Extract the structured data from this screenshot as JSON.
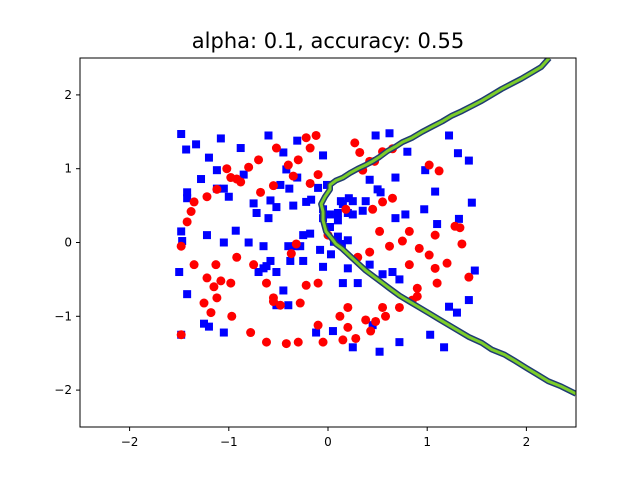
{
  "chart_data": {
    "type": "scatter",
    "title": "alpha: 0.1, accuracy: 0.55",
    "xlabel": "",
    "ylabel": "",
    "xlim": [
      -2.5,
      2.5
    ],
    "ylim": [
      -2.5,
      2.5
    ],
    "xticks": [
      -2,
      -1,
      0,
      1,
      2
    ],
    "yticks": [
      -2,
      -1,
      0,
      1,
      2
    ],
    "xtick_labels": [
      "−2",
      "−1",
      "0",
      "1",
      "2"
    ],
    "ytick_labels": [
      "−2",
      "−1",
      "0",
      "1",
      "2"
    ],
    "grid": false,
    "colors": {
      "class_a": "#0000ff",
      "class_b": "#ff0000",
      "boundary_outer": "#1f3b73",
      "boundary_inner": "#7ccd2a"
    },
    "series": [
      {
        "marker": "square",
        "color": "#0000ff",
        "points": [
          [
            -1.48,
            1.47
          ],
          [
            -1.43,
            1.26
          ],
          [
            -1.33,
            1.33
          ],
          [
            -1.2,
            1.15
          ],
          [
            -1.12,
            0.98
          ],
          [
            -1.08,
            1.41
          ],
          [
            -0.88,
            1.28
          ],
          [
            -0.6,
            1.45
          ],
          [
            -0.45,
            1.22
          ],
          [
            -0.31,
            1.38
          ],
          [
            -0.05,
            1.18
          ],
          [
            -0.42,
            0.99
          ],
          [
            -0.48,
            0.78
          ],
          [
            -0.39,
            0.73
          ],
          [
            -0.31,
            0.88
          ],
          [
            -0.58,
            0.57
          ],
          [
            -0.72,
            0.4
          ],
          [
            -0.6,
            0.33
          ],
          [
            -0.75,
            0.53
          ],
          [
            -0.85,
            0.92
          ],
          [
            -1.05,
            0.73
          ],
          [
            -1.28,
            0.86
          ],
          [
            -1.42,
            0.68
          ],
          [
            -1.42,
            0.6
          ],
          [
            -1.12,
            0.73
          ],
          [
            -1.0,
            0.62
          ],
          [
            -0.52,
            0.48
          ],
          [
            -0.35,
            0.5
          ],
          [
            -0.22,
            0.55
          ],
          [
            -0.17,
            0.58
          ],
          [
            -0.1,
            0.74
          ],
          [
            -0.01,
            0.78
          ],
          [
            0.15,
            0.52
          ],
          [
            0.13,
            0.56
          ],
          [
            0.21,
            0.6
          ],
          [
            0.35,
            0.43
          ],
          [
            0.38,
            0.56
          ],
          [
            0.25,
            0.38
          ],
          [
            0.42,
            0.85
          ],
          [
            0.5,
            0.72
          ],
          [
            0.1,
            0.4
          ],
          [
            -0.05,
            0.33
          ],
          [
            0.02,
            0.21
          ],
          [
            0.02,
            0.38
          ],
          [
            0.1,
            0.3
          ],
          [
            0.2,
            0.4
          ],
          [
            0.25,
            0.56
          ],
          [
            -0.05,
            0.45
          ],
          [
            -0.25,
            0.1
          ],
          [
            -0.28,
            -0.05
          ],
          [
            -0.18,
            0.12
          ],
          [
            -0.08,
            -0.1
          ],
          [
            0.1,
            0.08
          ],
          [
            0.06,
            0.01
          ],
          [
            0.14,
            -0.02
          ],
          [
            0.2,
            0.03
          ],
          [
            0.03,
            -0.16
          ],
          [
            -0.4,
            -0.05
          ],
          [
            -0.65,
            -0.05
          ],
          [
            -0.8,
            0.0
          ],
          [
            -0.93,
            0.16
          ],
          [
            -1.05,
            0.0
          ],
          [
            -1.22,
            0.1
          ],
          [
            -1.48,
            0.15
          ],
          [
            -1.47,
            0.02
          ],
          [
            -1.5,
            -0.4
          ],
          [
            -1.42,
            -0.7
          ],
          [
            -1.25,
            -1.1
          ],
          [
            -1.2,
            -1.14
          ],
          [
            -1.05,
            -1.22
          ],
          [
            -1.48,
            -1.25
          ],
          [
            -0.7,
            -0.4
          ],
          [
            -0.65,
            -0.35
          ],
          [
            -0.58,
            -0.25
          ],
          [
            -0.52,
            -0.4
          ],
          [
            -0.25,
            -0.25
          ],
          [
            -0.33,
            -0.05
          ],
          [
            -0.05,
            -0.33
          ],
          [
            0.3,
            -0.55
          ],
          [
            0.2,
            -0.35
          ],
          [
            0.15,
            -0.55
          ],
          [
            0.42,
            -0.3
          ],
          [
            0.55,
            -0.43
          ],
          [
            0.65,
            -0.4
          ],
          [
            0.72,
            -0.5
          ],
          [
            0.53,
            0.68
          ],
          [
            0.62,
            1.48
          ],
          [
            0.48,
            1.45
          ],
          [
            0.8,
            1.23
          ],
          [
            0.68,
            0.88
          ],
          [
            0.98,
            0.98
          ],
          [
            1.08,
            0.69
          ],
          [
            1.22,
            1.45
          ],
          [
            1.31,
            1.21
          ],
          [
            1.42,
            1.11
          ],
          [
            1.45,
            0.54
          ],
          [
            1.32,
            0.32
          ],
          [
            0.97,
            0.45
          ],
          [
            1.1,
            0.25
          ],
          [
            0.78,
            0.38
          ],
          [
            0.68,
            0.33
          ],
          [
            1.48,
            -0.38
          ],
          [
            1.42,
            -0.78
          ],
          [
            1.3,
            -0.95
          ],
          [
            1.22,
            -0.87
          ],
          [
            1.03,
            -1.25
          ],
          [
            1.17,
            -1.42
          ],
          [
            0.72,
            -1.35
          ],
          [
            0.25,
            -1.42
          ],
          [
            0.05,
            -1.2
          ],
          [
            -0.12,
            -1.22
          ],
          [
            0.52,
            -1.48
          ],
          [
            0.45,
            -1.12
          ],
          [
            -0.52,
            -0.85
          ],
          [
            -0.4,
            -0.85
          ],
          [
            -0.45,
            -0.65
          ],
          [
            -0.38,
            -0.25
          ],
          [
            -0.62,
            -0.32
          ]
        ]
      },
      {
        "marker": "circle",
        "color": "#ff0000",
        "points": [
          [
            -1.02,
            1.0
          ],
          [
            -0.98,
            0.88
          ],
          [
            -0.88,
            0.82
          ],
          [
            -0.8,
            1.02
          ],
          [
            -0.7,
            1.12
          ],
          [
            -0.52,
            1.28
          ],
          [
            -0.4,
            1.05
          ],
          [
            -0.3,
            1.12
          ],
          [
            -0.18,
            1.28
          ],
          [
            -0.12,
            1.45
          ],
          [
            -0.22,
            1.42
          ],
          [
            -0.1,
            0.92
          ],
          [
            -0.18,
            0.8
          ],
          [
            -0.35,
            0.9
          ],
          [
            -0.55,
            0.77
          ],
          [
            -0.68,
            0.68
          ],
          [
            -0.92,
            0.86
          ],
          [
            -1.12,
            0.72
          ],
          [
            -1.22,
            0.62
          ],
          [
            -1.38,
            0.42
          ],
          [
            -1.42,
            0.28
          ],
          [
            -1.48,
            -0.05
          ],
          [
            -1.35,
            -0.3
          ],
          [
            -1.22,
            -0.48
          ],
          [
            -1.13,
            -0.3
          ],
          [
            -1.08,
            -0.52
          ],
          [
            -1.15,
            -0.6
          ],
          [
            -1.12,
            -0.75
          ],
          [
            -1.25,
            -0.82
          ],
          [
            -1.18,
            -0.95
          ],
          [
            -0.97,
            -1.0
          ],
          [
            -0.98,
            -0.55
          ],
          [
            -0.92,
            -0.2
          ],
          [
            -0.75,
            -0.3
          ],
          [
            -0.62,
            -0.55
          ],
          [
            -0.55,
            -0.75
          ],
          [
            -0.48,
            -0.85
          ],
          [
            -0.28,
            -0.82
          ],
          [
            -0.22,
            -0.58
          ],
          [
            -0.1,
            -0.55
          ],
          [
            -0.3,
            -1.35
          ],
          [
            -0.42,
            -1.37
          ],
          [
            -0.62,
            -1.35
          ],
          [
            -0.78,
            -1.22
          ],
          [
            -0.1,
            -1.12
          ],
          [
            -0.05,
            -1.35
          ],
          [
            0.12,
            -1.0
          ],
          [
            0.2,
            -0.88
          ],
          [
            0.2,
            -1.15
          ],
          [
            0.28,
            -1.3
          ],
          [
            0.15,
            -1.32
          ],
          [
            0.38,
            -1.05
          ],
          [
            0.43,
            -1.2
          ],
          [
            0.48,
            -1.07
          ],
          [
            0.58,
            -1.0
          ],
          [
            0.55,
            -0.88
          ],
          [
            0.72,
            -0.88
          ],
          [
            0.85,
            -0.78
          ],
          [
            0.9,
            -0.73
          ],
          [
            0.9,
            -0.62
          ],
          [
            1.1,
            -0.55
          ],
          [
            1.08,
            -0.35
          ],
          [
            1.02,
            -0.17
          ],
          [
            0.92,
            -0.08
          ],
          [
            0.82,
            0.15
          ],
          [
            0.75,
            0.02
          ],
          [
            1.2,
            -0.28
          ],
          [
            1.28,
            0.22
          ],
          [
            1.33,
            0.2
          ],
          [
            1.35,
            -0.02
          ],
          [
            1.42,
            -0.47
          ],
          [
            1.08,
            0.1
          ],
          [
            0.82,
            -0.3
          ],
          [
            0.62,
            -0.05
          ],
          [
            0.42,
            -0.13
          ],
          [
            0.3,
            -0.2
          ],
          [
            0.52,
            0.15
          ],
          [
            0.45,
            0.45
          ],
          [
            0.18,
            0.45
          ],
          [
            0.55,
            0.55
          ],
          [
            0.65,
            0.6
          ],
          [
            1.12,
            0.97
          ],
          [
            1.02,
            1.05
          ],
          [
            0.65,
            1.27
          ],
          [
            0.55,
            1.23
          ],
          [
            0.47,
            1.1
          ],
          [
            0.42,
            1.1
          ],
          [
            0.32,
            1.22
          ],
          [
            0.27,
            1.35
          ],
          [
            0.35,
            0.98
          ],
          [
            -1.35,
            0.55
          ],
          [
            -1.48,
            -1.25
          ],
          [
            -0.32,
            -0.02
          ],
          [
            -0.37,
            -0.15
          ],
          [
            -0.55,
            -0.8
          ],
          [
            0.0,
            0.1
          ]
        ]
      }
    ],
    "decision_boundary": [
      [
        -0.05,
        0.42
      ],
      [
        -0.07,
        0.52
      ],
      [
        -0.03,
        0.62
      ],
      [
        0.02,
        0.72
      ],
      [
        0.02,
        0.78
      ],
      [
        0.08,
        0.84
      ],
      [
        0.15,
        0.88
      ],
      [
        0.22,
        0.94
      ],
      [
        0.3,
        1.0
      ],
      [
        0.38,
        1.05
      ],
      [
        0.45,
        1.1
      ],
      [
        0.52,
        1.16
      ],
      [
        0.6,
        1.24
      ],
      [
        0.68,
        1.3
      ],
      [
        0.75,
        1.36
      ],
      [
        0.85,
        1.42
      ],
      [
        0.95,
        1.5
      ],
      [
        1.05,
        1.57
      ],
      [
        1.15,
        1.64
      ],
      [
        1.25,
        1.72
      ],
      [
        1.35,
        1.78
      ],
      [
        1.45,
        1.85
      ],
      [
        1.55,
        1.92
      ],
      [
        1.65,
        2.0
      ],
      [
        1.75,
        2.08
      ],
      [
        1.85,
        2.15
      ],
      [
        1.95,
        2.22
      ],
      [
        2.05,
        2.3
      ],
      [
        2.15,
        2.38
      ],
      [
        2.23,
        2.5
      ]
    ],
    "decision_boundary_lower": [
      [
        -0.05,
        0.42
      ],
      [
        -0.05,
        0.3
      ],
      [
        -0.02,
        0.15
      ],
      [
        0.04,
        0.05
      ],
      [
        0.08,
        -0.02
      ],
      [
        0.14,
        -0.08
      ],
      [
        0.22,
        -0.18
      ],
      [
        0.3,
        -0.28
      ],
      [
        0.38,
        -0.38
      ],
      [
        0.46,
        -0.46
      ],
      [
        0.55,
        -0.55
      ],
      [
        0.62,
        -0.62
      ],
      [
        0.72,
        -0.72
      ],
      [
        0.82,
        -0.8
      ],
      [
        0.92,
        -0.88
      ],
      [
        1.02,
        -0.96
      ],
      [
        1.12,
        -1.04
      ],
      [
        1.22,
        -1.12
      ],
      [
        1.32,
        -1.2
      ],
      [
        1.42,
        -1.28
      ],
      [
        1.55,
        -1.36
      ],
      [
        1.65,
        -1.45
      ],
      [
        1.78,
        -1.52
      ],
      [
        1.88,
        -1.6
      ],
      [
        2.0,
        -1.7
      ],
      [
        2.1,
        -1.78
      ],
      [
        2.22,
        -1.88
      ],
      [
        2.35,
        -1.95
      ],
      [
        2.5,
        -2.05
      ]
    ]
  }
}
